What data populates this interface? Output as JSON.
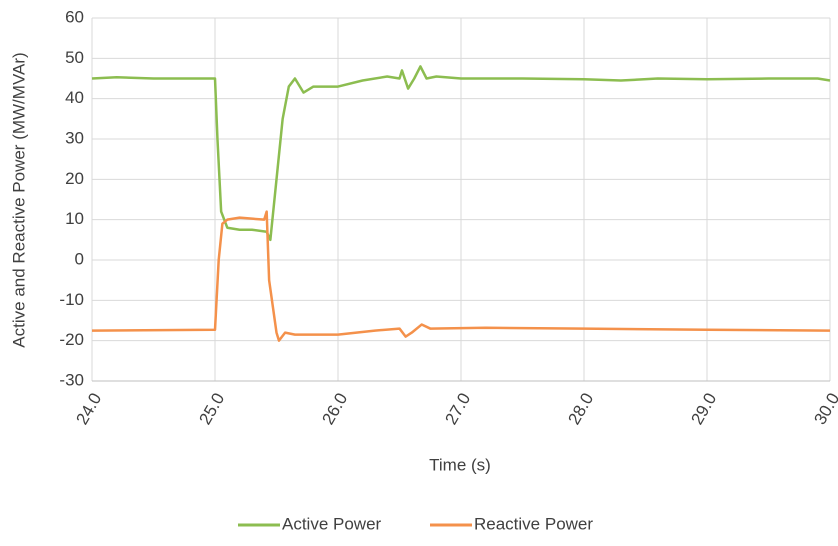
{
  "chart_data": {
    "type": "line",
    "xlabel": "Time (s)",
    "ylabel": "Active and Reactive  Power (MW/MVAr)",
    "xlim": [
      24,
      30
    ],
    "xticks": [
      {
        "value": 24,
        "label": "24.0"
      },
      {
        "value": 25,
        "label": "25.0"
      },
      {
        "value": 26,
        "label": "26.0"
      },
      {
        "value": 27,
        "label": "27.0"
      },
      {
        "value": 28,
        "label": "28.0"
      },
      {
        "value": 29,
        "label": "29.0"
      },
      {
        "value": 30,
        "label": "30.0"
      }
    ],
    "ylim": [
      -30,
      60
    ],
    "yticks": [
      -30,
      -20,
      -10,
      0,
      10,
      20,
      30,
      40,
      50,
      60
    ],
    "grid": true,
    "legend": "bottom",
    "series": [
      {
        "name": "Active Power",
        "color": "#8cbd50",
        "x": [
          24.0,
          24.2,
          24.5,
          25.0,
          25.02,
          25.05,
          25.1,
          25.2,
          25.3,
          25.42,
          25.45,
          25.5,
          25.55,
          25.6,
          25.65,
          25.72,
          25.8,
          26.0,
          26.2,
          26.4,
          26.5,
          26.52,
          26.57,
          26.62,
          26.67,
          26.72,
          26.8,
          27.0,
          27.5,
          28.0,
          28.3,
          28.6,
          29.0,
          29.5,
          29.9,
          30.0
        ],
        "values": [
          45,
          45.3,
          45,
          45,
          30,
          12,
          8,
          7.5,
          7.5,
          7,
          5,
          20,
          35,
          43,
          45,
          41.5,
          43,
          43,
          44.5,
          45.5,
          45,
          47,
          42.5,
          45,
          48,
          45,
          45.5,
          45,
          45,
          44.8,
          44.5,
          45,
          44.8,
          45,
          45,
          44.5
        ]
      },
      {
        "name": "Reactive Power",
        "color": "#f4914b",
        "x": [
          24.0,
          25.0,
          25.03,
          25.06,
          25.1,
          25.2,
          25.4,
          25.42,
          25.44,
          25.5,
          25.52,
          25.57,
          25.65,
          26.0,
          26.3,
          26.5,
          26.55,
          26.6,
          26.68,
          26.75,
          27.2,
          28.0,
          29.0,
          30.0
        ],
        "values": [
          -17.5,
          -17.3,
          0,
          9,
          10,
          10.5,
          10,
          12,
          -5,
          -18,
          -20,
          -18,
          -18.5,
          -18.5,
          -17.5,
          -17,
          -19,
          -18,
          -16,
          -17,
          -16.8,
          -17,
          -17.3,
          -17.5
        ]
      }
    ]
  }
}
